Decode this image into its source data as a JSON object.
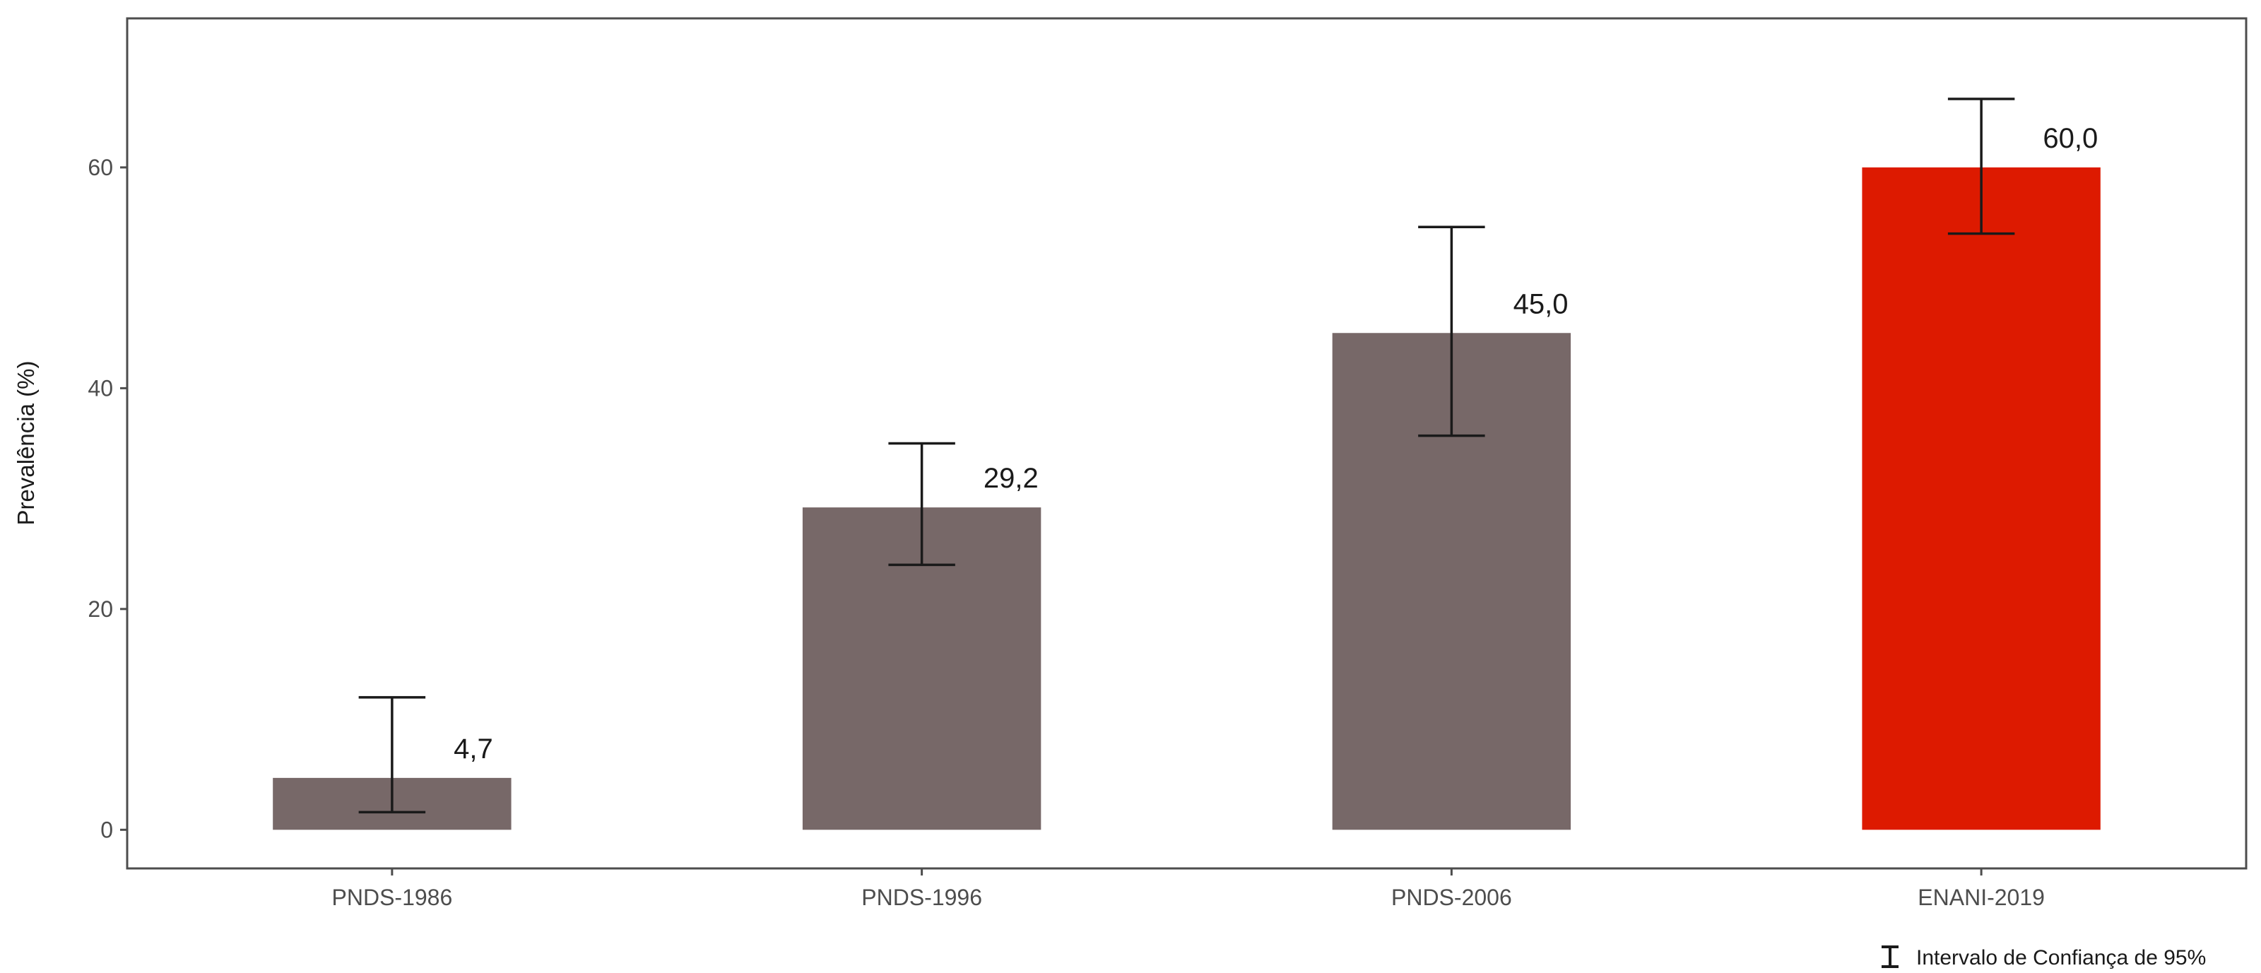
{
  "chart_data": {
    "type": "bar",
    "title": "",
    "xlabel": "",
    "ylabel": "Prevalência (%)",
    "categories": [
      "PNDS-1986",
      "PNDS-1996",
      "PNDS-2006",
      "ENANI-2019"
    ],
    "values": [
      4.7,
      29.2,
      45.0,
      60.0
    ],
    "value_labels": [
      "4,7",
      "29,2",
      "45,0",
      "60,0"
    ],
    "ci_lower": [
      1.6,
      24.0,
      35.7,
      54.0
    ],
    "ci_upper": [
      12.0,
      35.0,
      54.6,
      66.2
    ],
    "bar_colors": [
      "#776868",
      "#776868",
      "#776868",
      "#dd1a00"
    ],
    "ylim": [
      -3.5,
      73.5
    ],
    "yticks": [
      0,
      20,
      40,
      60
    ],
    "ytick_labels": [
      "0",
      "20",
      "40",
      "60"
    ],
    "grid": false,
    "legend": {
      "placement": "bottom-right",
      "label": "Intervalo de Confiança de 95%"
    }
  }
}
